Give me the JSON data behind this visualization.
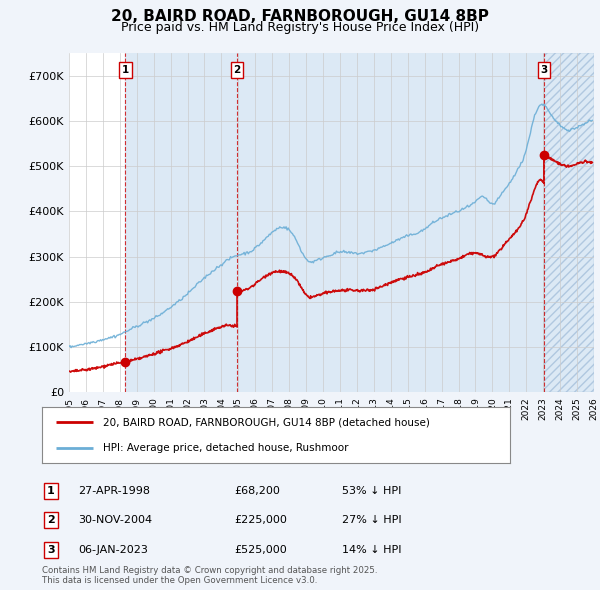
{
  "title": "20, BAIRD ROAD, FARNBOROUGH, GU14 8BP",
  "subtitle": "Price paid vs. HM Land Registry's House Price Index (HPI)",
  "ylim": [
    0,
    750000
  ],
  "yticks": [
    0,
    100000,
    200000,
    300000,
    400000,
    500000,
    600000,
    700000
  ],
  "ytick_labels": [
    "£0",
    "£100K",
    "£200K",
    "£300K",
    "£400K",
    "£500K",
    "£600K",
    "£700K"
  ],
  "sale_years": [
    1998.33,
    2004.92,
    2023.04
  ],
  "sale_prices": [
    68200,
    225000,
    525000
  ],
  "sale_labels": [
    "1",
    "2",
    "3"
  ],
  "legend_line1": "20, BAIRD ROAD, FARNBOROUGH, GU14 8BP (detached house)",
  "legend_line2": "HPI: Average price, detached house, Rushmoor",
  "table_rows": [
    [
      "1",
      "27-APR-1998",
      "£68,200",
      "53% ↓ HPI"
    ],
    [
      "2",
      "30-NOV-2004",
      "£225,000",
      "27% ↓ HPI"
    ],
    [
      "3",
      "06-JAN-2023",
      "£525,000",
      "14% ↓ HPI"
    ]
  ],
  "footnote": "Contains HM Land Registry data © Crown copyright and database right 2025.\nThis data is licensed under the Open Government Licence v3.0.",
  "line_color_red": "#cc0000",
  "line_color_blue": "#6baed6",
  "shade_color": "#dce9f5",
  "background_color": "#f0f4fa",
  "plot_bg_color": "#ffffff",
  "grid_color": "#cccccc",
  "title_fontsize": 11,
  "subtitle_fontsize": 9,
  "axis_fontsize": 8,
  "x_start_year": 1995.0,
  "x_end_year": 2026.0
}
